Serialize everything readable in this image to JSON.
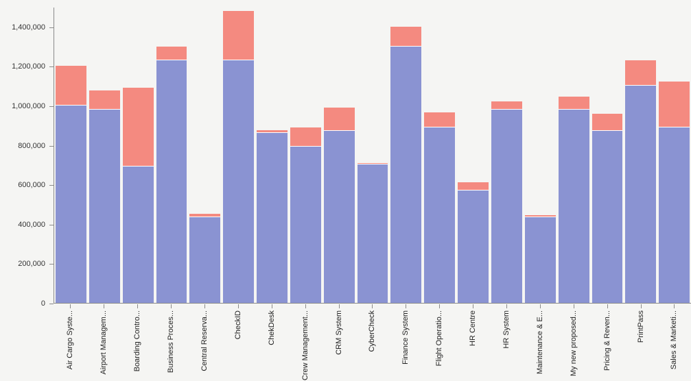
{
  "chart_data": {
    "type": "bar",
    "stacked": true,
    "title": "",
    "xlabel": "",
    "ylabel": "",
    "grid": false,
    "legend": "none",
    "background_color": "#f5f5f3",
    "axis_color": "#8a8a8a",
    "ylim": [
      0,
      1500000
    ],
    "yticks": [
      0,
      200000,
      400000,
      600000,
      800000,
      1000000,
      1200000,
      1400000
    ],
    "categories": [
      "Air Cargo Syste...",
      "Airport Managem...",
      "Boarding Contro...",
      "Business Proces...",
      "Central Reserva...",
      "CheckID",
      "ChekDesk",
      "Crew Management...",
      "CRM System",
      "CyberCheck",
      "Finance System",
      "Flight Operatio...",
      "HR Centre",
      "HR System",
      "Maintenance & E...",
      "My new proposed...",
      "Pricing & Reven...",
      "PrintPass",
      "Sales & Marketi..."
    ],
    "series": [
      {
        "name": "bottom-segment",
        "color": "#8a93d2",
        "values": [
          1000000,
          980000,
          690000,
          1230000,
          435000,
          1230000,
          860000,
          790000,
          870000,
          700000,
          1300000,
          890000,
          570000,
          980000,
          435000,
          980000,
          870000,
          1100000,
          890000
        ]
      },
      {
        "name": "top-segment",
        "color": "#f48a80",
        "values": [
          200000,
          95000,
          400000,
          70000,
          15000,
          250000,
          15000,
          100000,
          120000,
          10000,
          100000,
          75000,
          40000,
          40000,
          10000,
          65000,
          90000,
          130000,
          230000
        ]
      }
    ]
  }
}
